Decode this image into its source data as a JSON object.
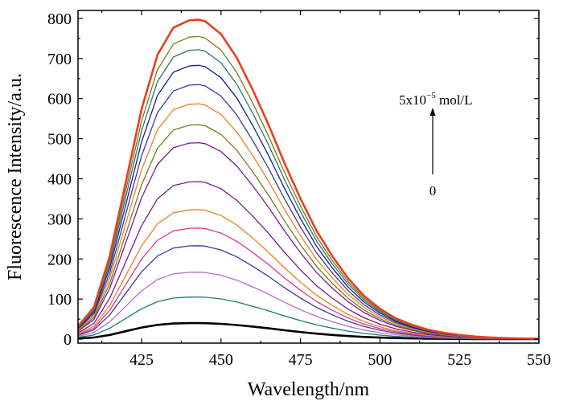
{
  "chart_data": {
    "type": "line",
    "title": "",
    "xlabel": "Wavelength/nm",
    "ylabel": "Fluorescence Intensity/a.u.",
    "xlim": [
      405,
      550
    ],
    "ylim": [
      -10,
      820
    ],
    "x_ticks": [
      "425",
      "450",
      "475",
      "500",
      "525",
      "550"
    ],
    "y_ticks": [
      "0",
      "100",
      "200",
      "300",
      "400",
      "500",
      "600",
      "700",
      "800"
    ],
    "grid": false,
    "legend": "none",
    "peak_wavelength": 443,
    "x": [
      405,
      410,
      415,
      420,
      425,
      430,
      435,
      440,
      443,
      445,
      450,
      455,
      460,
      465,
      470,
      475,
      480,
      485,
      490,
      495,
      500,
      505,
      510,
      515,
      520,
      525,
      530,
      535,
      540,
      545,
      550
    ],
    "series": [
      {
        "color": "#000000",
        "peak": 40,
        "bold": true
      },
      {
        "color": "#1a7a7a",
        "peak": 105
      },
      {
        "color": "#b070c8",
        "peak": 167
      },
      {
        "color": "#3a3aa0",
        "peak": 233
      },
      {
        "color": "#d83a8a",
        "peak": 277
      },
      {
        "color": "#ee8020",
        "peak": 323
      },
      {
        "color": "#7a1a90",
        "peak": 393
      },
      {
        "color": "#7a1a90",
        "peak": 490
      },
      {
        "color": "#7a7a20",
        "peak": 535
      },
      {
        "color": "#ee8020",
        "peak": 587
      },
      {
        "color": "#3a3aa0",
        "peak": 635
      },
      {
        "color": "#1a1a90",
        "peak": 683
      },
      {
        "color": "#2a7a6a",
        "peak": 722
      },
      {
        "color": "#7a7a20",
        "peak": 755
      },
      {
        "color": "#e84020",
        "peak": 797,
        "bold": true
      }
    ],
    "profile": [
      0.04,
      0.1,
      0.26,
      0.49,
      0.72,
      0.89,
      0.975,
      0.998,
      1.0,
      0.995,
      0.955,
      0.88,
      0.78,
      0.67,
      0.55,
      0.44,
      0.34,
      0.26,
      0.19,
      0.135,
      0.095,
      0.065,
      0.045,
      0.03,
      0.02,
      0.013,
      0.008,
      0.005,
      0.003,
      0.002,
      0.001
    ],
    "annotation": {
      "top_base": "5x10",
      "top_exp": "−5",
      "top_unit": " mol/L",
      "bottom": "0"
    }
  }
}
